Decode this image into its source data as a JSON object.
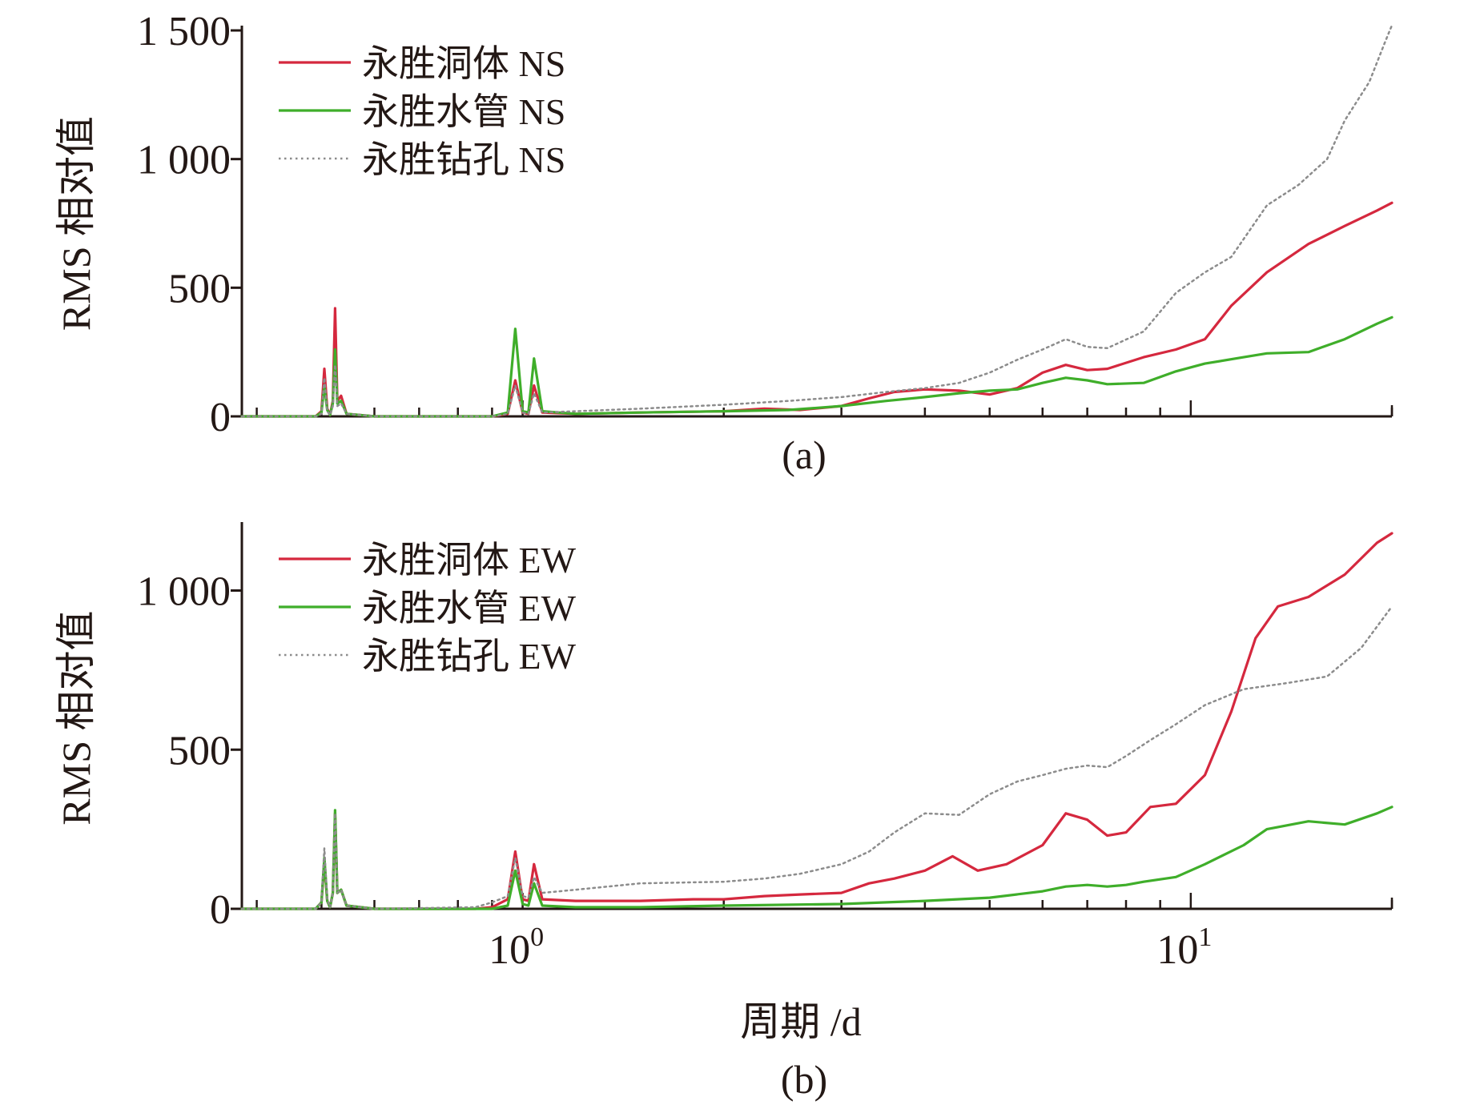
{
  "colors": {
    "axis": "#231815",
    "series_red": "#d5283e",
    "series_green": "#3fae2a",
    "series_gray": "#8c8c8c"
  },
  "xlabel": "周期 /d",
  "chart_data": [
    {
      "type": "line",
      "panel_label": "(a)",
      "ylabel": "RMS 相对值",
      "xscale": "log",
      "xlim": [
        0.38,
        20
      ],
      "ylim": [
        0,
        1500
      ],
      "yticks": [
        0,
        500,
        1000,
        1500
      ],
      "ytick_labels": [
        "0",
        "500",
        "1 000",
        "1 500"
      ],
      "xticks": [],
      "xtick_labels": [],
      "grid": false,
      "legend_position": "top-left",
      "series": [
        {
          "name": "永胜洞体 NS",
          "color": "#d5283e",
          "style": "solid",
          "points": [
            [
              0.38,
              0
            ],
            [
              0.49,
              0
            ],
            [
              0.5,
              20
            ],
            [
              0.505,
              185
            ],
            [
              0.51,
              30
            ],
            [
              0.515,
              5
            ],
            [
              0.52,
              60
            ],
            [
              0.524,
              420
            ],
            [
              0.528,
              60
            ],
            [
              0.535,
              80
            ],
            [
              0.545,
              10
            ],
            [
              0.6,
              0
            ],
            [
              0.9,
              0
            ],
            [
              0.95,
              10
            ],
            [
              0.975,
              140
            ],
            [
              1.0,
              15
            ],
            [
              1.02,
              10
            ],
            [
              1.04,
              120
            ],
            [
              1.07,
              15
            ],
            [
              1.2,
              10
            ],
            [
              1.5,
              15
            ],
            [
              2.0,
              20
            ],
            [
              2.3,
              30
            ],
            [
              2.6,
              25
            ],
            [
              3.0,
              40
            ],
            [
              3.3,
              70
            ],
            [
              3.6,
              95
            ],
            [
              4.0,
              105
            ],
            [
              4.5,
              100
            ],
            [
              5.0,
              85
            ],
            [
              5.5,
              110
            ],
            [
              6.0,
              170
            ],
            [
              6.5,
              200
            ],
            [
              7.0,
              180
            ],
            [
              7.5,
              185
            ],
            [
              8.5,
              230
            ],
            [
              9.5,
              260
            ],
            [
              10.5,
              300
            ],
            [
              11.5,
              430
            ],
            [
              13.0,
              560
            ],
            [
              15.0,
              670
            ],
            [
              17.0,
              740
            ],
            [
              19.0,
              800
            ],
            [
              20.0,
              830
            ]
          ]
        },
        {
          "name": "永胜水管 NS",
          "color": "#3fae2a",
          "style": "solid",
          "points": [
            [
              0.38,
              0
            ],
            [
              0.49,
              0
            ],
            [
              0.5,
              15
            ],
            [
              0.505,
              120
            ],
            [
              0.51,
              25
            ],
            [
              0.515,
              5
            ],
            [
              0.52,
              50
            ],
            [
              0.524,
              260
            ],
            [
              0.528,
              50
            ],
            [
              0.535,
              60
            ],
            [
              0.545,
              10
            ],
            [
              0.6,
              0
            ],
            [
              0.9,
              0
            ],
            [
              0.95,
              15
            ],
            [
              0.975,
              340
            ],
            [
              1.0,
              20
            ],
            [
              1.02,
              15
            ],
            [
              1.04,
              225
            ],
            [
              1.07,
              20
            ],
            [
              1.2,
              10
            ],
            [
              1.5,
              15
            ],
            [
              2.0,
              20
            ],
            [
              2.5,
              25
            ],
            [
              3.0,
              40
            ],
            [
              3.5,
              60
            ],
            [
              4.0,
              75
            ],
            [
              4.5,
              90
            ],
            [
              5.0,
              100
            ],
            [
              5.5,
              105
            ],
            [
              6.0,
              130
            ],
            [
              6.5,
              150
            ],
            [
              7.0,
              140
            ],
            [
              7.5,
              125
            ],
            [
              8.5,
              130
            ],
            [
              9.5,
              175
            ],
            [
              10.5,
              205
            ],
            [
              12.0,
              230
            ],
            [
              13.0,
              245
            ],
            [
              15.0,
              250
            ],
            [
              17.0,
              300
            ],
            [
              19.0,
              360
            ],
            [
              20.0,
              385
            ]
          ]
        },
        {
          "name": "永胜钻孔 NS",
          "color": "#8c8c8c",
          "style": "dotted",
          "points": [
            [
              0.38,
              0
            ],
            [
              0.49,
              0
            ],
            [
              0.5,
              10
            ],
            [
              0.505,
              150
            ],
            [
              0.51,
              20
            ],
            [
              0.515,
              5
            ],
            [
              0.52,
              40
            ],
            [
              0.524,
              200
            ],
            [
              0.528,
              40
            ],
            [
              0.535,
              50
            ],
            [
              0.545,
              10
            ],
            [
              0.6,
              0
            ],
            [
              0.9,
              0
            ],
            [
              0.95,
              10
            ],
            [
              0.975,
              120
            ],
            [
              1.0,
              15
            ],
            [
              1.02,
              10
            ],
            [
              1.04,
              90
            ],
            [
              1.07,
              15
            ],
            [
              1.2,
              20
            ],
            [
              1.5,
              30
            ],
            [
              2.0,
              45
            ],
            [
              2.5,
              60
            ],
            [
              3.0,
              75
            ],
            [
              3.5,
              95
            ],
            [
              4.0,
              110
            ],
            [
              4.5,
              130
            ],
            [
              5.0,
              170
            ],
            [
              5.5,
              220
            ],
            [
              6.0,
              260
            ],
            [
              6.5,
              300
            ],
            [
              7.0,
              270
            ],
            [
              7.5,
              265
            ],
            [
              8.5,
              330
            ],
            [
              9.5,
              480
            ],
            [
              10.5,
              560
            ],
            [
              11.5,
              620
            ],
            [
              13.0,
              820
            ],
            [
              14.5,
              900
            ],
            [
              16.0,
              1000
            ],
            [
              17.0,
              1150
            ],
            [
              18.5,
              1300
            ],
            [
              19.5,
              1450
            ],
            [
              20.0,
              1520
            ]
          ]
        }
      ]
    },
    {
      "type": "line",
      "panel_label": "(b)",
      "ylabel": "RMS 相对值",
      "xscale": "log",
      "xlim": [
        0.38,
        20
      ],
      "ylim": [
        0,
        1200
      ],
      "yticks": [
        0,
        500,
        1000
      ],
      "ytick_labels": [
        "0",
        "500",
        "1 000"
      ],
      "xticks": [
        1,
        10
      ],
      "xtick_labels": [
        {
          "base": "10",
          "exp": "0"
        },
        {
          "base": "10",
          "exp": "1"
        }
      ],
      "grid": false,
      "legend_position": "top-left",
      "series": [
        {
          "name": "永胜洞体 EW",
          "color": "#d5283e",
          "style": "solid",
          "points": [
            [
              0.38,
              0
            ],
            [
              0.49,
              0
            ],
            [
              0.5,
              20
            ],
            [
              0.505,
              150
            ],
            [
              0.51,
              25
            ],
            [
              0.515,
              5
            ],
            [
              0.52,
              50
            ],
            [
              0.524,
              300
            ],
            [
              0.528,
              50
            ],
            [
              0.535,
              60
            ],
            [
              0.545,
              10
            ],
            [
              0.6,
              0
            ],
            [
              0.85,
              0
            ],
            [
              0.9,
              5
            ],
            [
              0.95,
              30
            ],
            [
              0.975,
              180
            ],
            [
              1.0,
              30
            ],
            [
              1.02,
              25
            ],
            [
              1.04,
              140
            ],
            [
              1.07,
              30
            ],
            [
              1.2,
              25
            ],
            [
              1.5,
              25
            ],
            [
              1.8,
              30
            ],
            [
              2.0,
              30
            ],
            [
              2.3,
              40
            ],
            [
              2.6,
              45
            ],
            [
              3.0,
              50
            ],
            [
              3.3,
              80
            ],
            [
              3.6,
              95
            ],
            [
              4.0,
              120
            ],
            [
              4.4,
              165
            ],
            [
              4.8,
              120
            ],
            [
              5.3,
              140
            ],
            [
              6.0,
              200
            ],
            [
              6.5,
              300
            ],
            [
              7.0,
              280
            ],
            [
              7.5,
              230
            ],
            [
              8.0,
              240
            ],
            [
              8.7,
              320
            ],
            [
              9.5,
              330
            ],
            [
              10.5,
              420
            ],
            [
              11.5,
              620
            ],
            [
              12.5,
              850
            ],
            [
              13.5,
              950
            ],
            [
              15.0,
              980
            ],
            [
              17.0,
              1050
            ],
            [
              19.0,
              1150
            ],
            [
              20.0,
              1180
            ]
          ]
        },
        {
          "name": "永胜水管 EW",
          "color": "#3fae2a",
          "style": "solid",
          "points": [
            [
              0.38,
              0
            ],
            [
              0.49,
              0
            ],
            [
              0.5,
              20
            ],
            [
              0.505,
              160
            ],
            [
              0.51,
              25
            ],
            [
              0.515,
              5
            ],
            [
              0.52,
              50
            ],
            [
              0.524,
              310
            ],
            [
              0.528,
              50
            ],
            [
              0.535,
              60
            ],
            [
              0.545,
              10
            ],
            [
              0.6,
              0
            ],
            [
              0.9,
              0
            ],
            [
              0.95,
              10
            ],
            [
              0.975,
              120
            ],
            [
              1.0,
              15
            ],
            [
              1.02,
              10
            ],
            [
              1.04,
              80
            ],
            [
              1.07,
              10
            ],
            [
              1.2,
              5
            ],
            [
              1.5,
              5
            ],
            [
              2.0,
              10
            ],
            [
              3.0,
              15
            ],
            [
              4.0,
              25
            ],
            [
              5.0,
              35
            ],
            [
              6.0,
              55
            ],
            [
              6.5,
              70
            ],
            [
              7.0,
              75
            ],
            [
              7.5,
              70
            ],
            [
              8.0,
              75
            ],
            [
              8.5,
              85
            ],
            [
              9.5,
              100
            ],
            [
              10.5,
              140
            ],
            [
              12.0,
              200
            ],
            [
              13.0,
              250
            ],
            [
              15.0,
              275
            ],
            [
              17.0,
              265
            ],
            [
              19.0,
              300
            ],
            [
              20.0,
              320
            ]
          ]
        },
        {
          "name": "永胜钻孔 EW",
          "color": "#8c8c8c",
          "style": "dotted",
          "points": [
            [
              0.38,
              0
            ],
            [
              0.49,
              0
            ],
            [
              0.5,
              20
            ],
            [
              0.505,
              190
            ],
            [
              0.51,
              30
            ],
            [
              0.515,
              5
            ],
            [
              0.52,
              50
            ],
            [
              0.524,
              300
            ],
            [
              0.528,
              50
            ],
            [
              0.535,
              60
            ],
            [
              0.545,
              10
            ],
            [
              0.6,
              0
            ],
            [
              0.85,
              5
            ],
            [
              0.9,
              20
            ],
            [
              0.95,
              40
            ],
            [
              0.975,
              160
            ],
            [
              1.0,
              40
            ],
            [
              1.02,
              35
            ],
            [
              1.04,
              100
            ],
            [
              1.07,
              50
            ],
            [
              1.2,
              60
            ],
            [
              1.5,
              80
            ],
            [
              2.0,
              85
            ],
            [
              2.3,
              95
            ],
            [
              2.6,
              110
            ],
            [
              3.0,
              140
            ],
            [
              3.3,
              180
            ],
            [
              3.6,
              240
            ],
            [
              4.0,
              300
            ],
            [
              4.5,
              295
            ],
            [
              5.0,
              360
            ],
            [
              5.5,
              400
            ],
            [
              6.0,
              420
            ],
            [
              6.5,
              440
            ],
            [
              7.0,
              450
            ],
            [
              7.5,
              445
            ],
            [
              8.0,
              480
            ],
            [
              8.7,
              530
            ],
            [
              9.5,
              580
            ],
            [
              10.5,
              640
            ],
            [
              12.0,
              690
            ],
            [
              14.0,
              710
            ],
            [
              16.0,
              730
            ],
            [
              18.0,
              820
            ],
            [
              20.0,
              950
            ]
          ]
        }
      ]
    }
  ]
}
